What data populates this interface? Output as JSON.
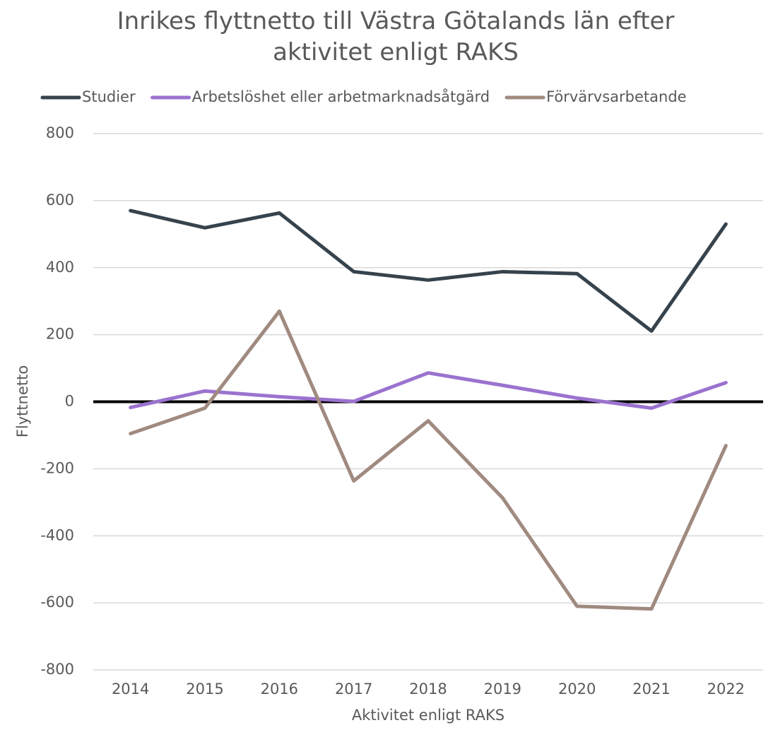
{
  "chart_data": {
    "type": "line",
    "title": "Inrikes flyttnetto till Västra Götalands län efter aktivitet enligt RAKS",
    "x_label": "Aktivitet enligt RAKS",
    "y_label": "Flyttnetto",
    "categories": [
      "2014",
      "2015",
      "2016",
      "2017",
      "2018",
      "2019",
      "2020",
      "2021",
      "2022"
    ],
    "series": [
      {
        "name": "Studier",
        "color": "#36434d",
        "values": [
          570,
          519,
          563,
          388,
          363,
          388,
          382,
          211,
          530
        ]
      },
      {
        "name": "Arbetslöshet eller arbetmarknadsåtgärd",
        "color": "#9b72cf",
        "values": [
          -17,
          32,
          15,
          1,
          86,
          49,
          11,
          -19,
          57
        ]
      },
      {
        "name": "Förvärvsarbetande",
        "color": "#a08a80",
        "values": [
          -95,
          -19,
          270,
          -236,
          -57,
          -287,
          -610,
          -618,
          -131
        ]
      }
    ],
    "ylim": [
      -800,
      800
    ],
    "yticks": [
      -800,
      -600,
      -400,
      -200,
      0,
      200,
      400,
      600,
      800
    ],
    "grid": true,
    "legend": "top"
  }
}
